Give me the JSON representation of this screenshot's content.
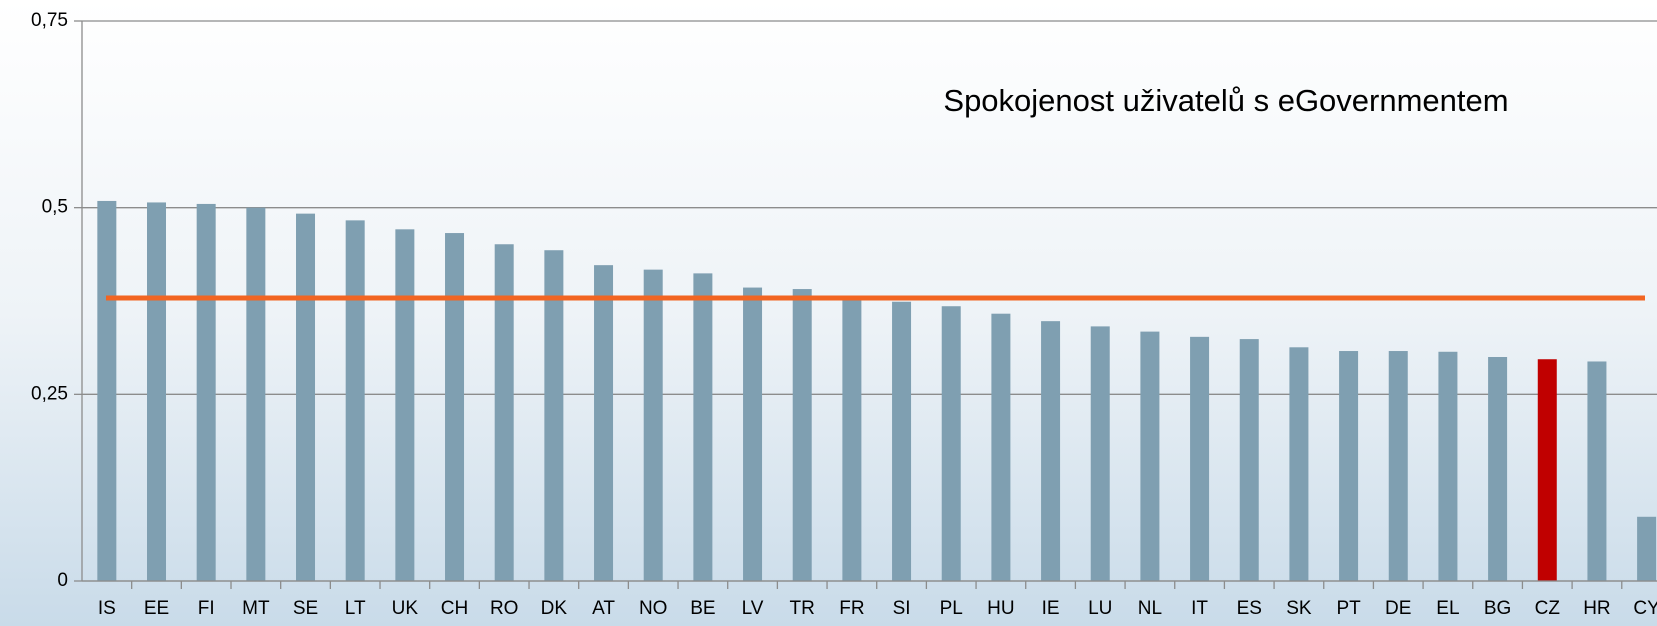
{
  "chart_data": {
    "type": "bar",
    "title": "Spokojenost uživatelů s eGovernmentem",
    "categories": [
      "IS",
      "EE",
      "FI",
      "MT",
      "SE",
      "LT",
      "UK",
      "CH",
      "RO",
      "DK",
      "AT",
      "NO",
      "BE",
      "LV",
      "TR",
      "FR",
      "SI",
      "PL",
      "HU",
      "IE",
      "LU",
      "NL",
      "IT",
      "ES",
      "SK",
      "PT",
      "DE",
      "EL",
      "BG",
      "CZ",
      "HR",
      "CY"
    ],
    "values": [
      0.509,
      0.507,
      0.505,
      0.5,
      0.492,
      0.483,
      0.471,
      0.466,
      0.451,
      0.443,
      0.423,
      0.417,
      0.412,
      0.393,
      0.391,
      0.379,
      0.374,
      0.368,
      0.358,
      0.348,
      0.341,
      0.334,
      0.327,
      0.324,
      0.313,
      0.308,
      0.308,
      0.307,
      0.3,
      0.297,
      0.294,
      0.086
    ],
    "color": "#7f9fb1",
    "highlight": {
      "index": 29,
      "color": "#c00000"
    },
    "reference_line": {
      "value": 0.379,
      "color": "#f26522"
    },
    "ylim": [
      0,
      0.75
    ],
    "yticks": [
      0,
      {
        "value": 0.25,
        "label": "0,25"
      },
      {
        "value": 0.5,
        "label": "0,5"
      },
      {
        "value": 0.75,
        "label": "0,75"
      }
    ],
    "grid": true
  }
}
